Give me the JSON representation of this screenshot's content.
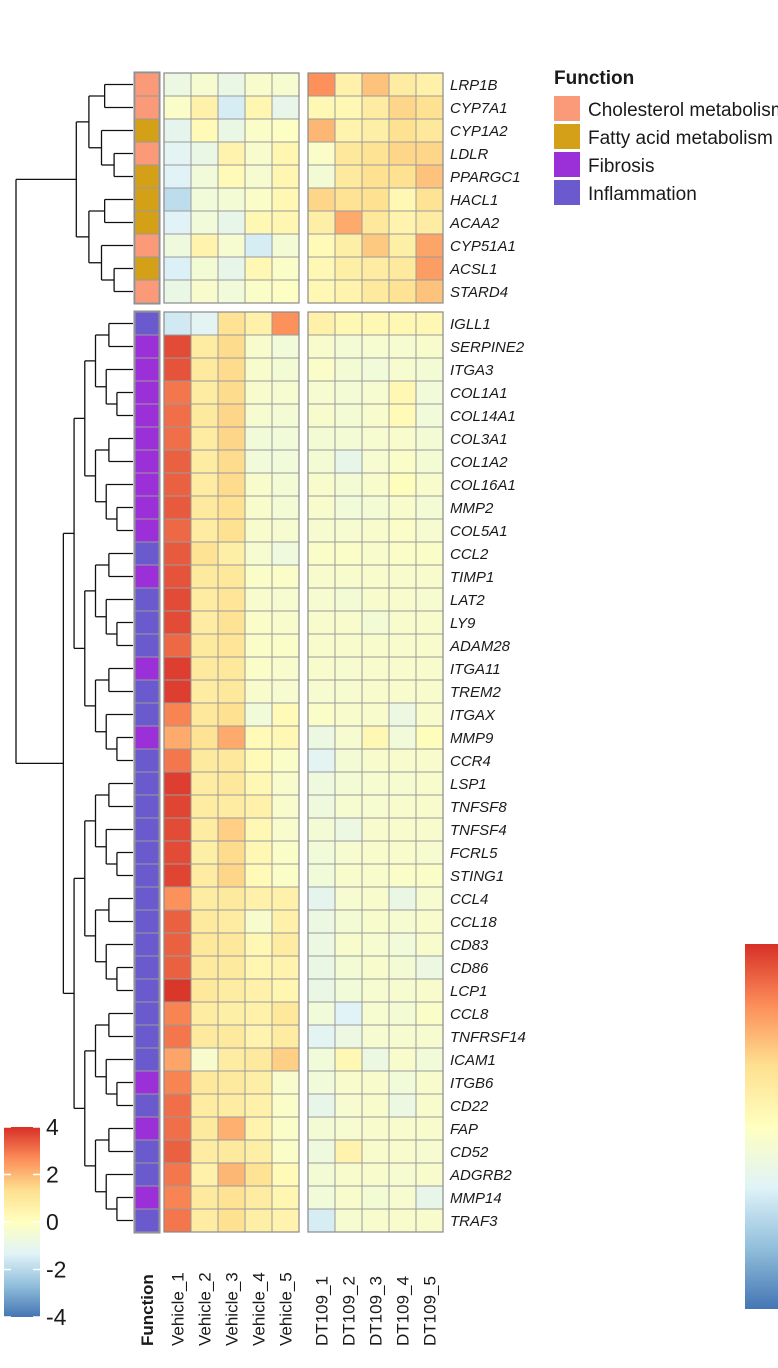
{
  "chart_data": {
    "type": "heatmap",
    "columns": [
      "Vehicle_1",
      "Vehicle_2",
      "Vehicle_3",
      "Vehicle_4",
      "Vehicle_5",
      "DT109_1",
      "DT109_2",
      "DT109_3",
      "DT109_4",
      "DT109_5"
    ],
    "function_column_label": "Function",
    "groups": [
      {
        "rows": [
          {
            "gene": "LRP1B",
            "function": "Cholesterol metabolism",
            "values": [
              -0.8,
              -0.4,
              -0.9,
              -0.3,
              -0.4,
              2.6,
              0.6,
              1.8,
              0.8,
              0.6
            ]
          },
          {
            "gene": "CYP7A1",
            "function": "Cholesterol metabolism",
            "values": [
              -0.2,
              0.6,
              -1.5,
              0.4,
              -1.0,
              0.3,
              0.3,
              0.8,
              1.5,
              1.3
            ]
          },
          {
            "gene": "CYP1A2",
            "function": "Fatty acid metabolism",
            "values": [
              -1.1,
              0.2,
              -0.9,
              -0.2,
              -0.1,
              2.0,
              0.5,
              0.7,
              1.3,
              1.0
            ]
          },
          {
            "gene": "LDLR",
            "function": "Cholesterol metabolism",
            "values": [
              -1.2,
              -0.9,
              0.5,
              -0.3,
              0.4,
              -0.2,
              1.0,
              1.2,
              1.5,
              1.5
            ]
          },
          {
            "gene": "PPARGC1",
            "function": "Fatty acid metabolism",
            "values": [
              -1.3,
              -0.6,
              0.2,
              -0.4,
              0.4,
              -0.5,
              0.9,
              1.3,
              1.3,
              1.8
            ]
          },
          {
            "gene": "HACL1",
            "function": "Fatty acid metabolism",
            "values": [
              -1.9,
              -0.6,
              -0.5,
              -0.2,
              0.3,
              1.5,
              1.2,
              1.3,
              0.3,
              1.2
            ]
          },
          {
            "gene": "ACAA2",
            "function": "Fatty acid metabolism",
            "values": [
              -1.3,
              -0.6,
              -1.0,
              0.3,
              0.4,
              0.7,
              2.2,
              1.0,
              0.5,
              0.8
            ]
          },
          {
            "gene": "CYP51A1",
            "function": "Cholesterol metabolism",
            "values": [
              -0.7,
              0.5,
              -0.4,
              -1.5,
              -0.5,
              0.2,
              0.7,
              1.7,
              0.7,
              2.3
            ]
          },
          {
            "gene": "ACSL1",
            "function": "Fatty acid metabolism",
            "values": [
              -1.4,
              -0.5,
              -1.0,
              0.3,
              -0.2,
              0.3,
              0.7,
              0.8,
              0.9,
              2.4
            ]
          },
          {
            "gene": "STARD4",
            "function": "Cholesterol metabolism",
            "values": [
              -0.9,
              -0.3,
              -0.6,
              -0.2,
              -0.1,
              0.3,
              0.5,
              0.9,
              1.2,
              1.8
            ]
          }
        ]
      },
      {
        "rows": [
          {
            "gene": "IGLL1",
            "function": "Inflammation",
            "values": [
              -1.6,
              -1.2,
              1.2,
              0.6,
              2.6,
              0.6,
              0.3,
              0.3,
              0.3,
              0.3
            ]
          },
          {
            "gene": "SERPINE2",
            "function": "Fibrosis",
            "values": [
              3.6,
              0.8,
              1.4,
              -0.3,
              -0.6,
              -0.3,
              -0.5,
              -0.4,
              -0.4,
              -0.3
            ]
          },
          {
            "gene": "ITGA3",
            "function": "Fibrosis",
            "values": [
              3.5,
              0.9,
              1.4,
              -0.3,
              -0.5,
              -0.2,
              -0.5,
              -0.6,
              -0.4,
              -0.5
            ]
          },
          {
            "gene": "COL1A1",
            "function": "Fibrosis",
            "values": [
              3.0,
              0.8,
              1.4,
              -0.3,
              -0.4,
              -0.4,
              -0.5,
              -0.4,
              0.3,
              -0.6
            ]
          },
          {
            "gene": "COL14A1",
            "function": "Fibrosis",
            "values": [
              3.1,
              0.9,
              1.5,
              -0.4,
              -0.5,
              -0.3,
              -0.5,
              -0.3,
              0.2,
              -0.6
            ]
          },
          {
            "gene": "COL3A1",
            "function": "Fibrosis",
            "values": [
              3.1,
              0.8,
              1.5,
              -0.6,
              -0.6,
              -0.5,
              -0.5,
              -0.4,
              -0.3,
              -0.5
            ]
          },
          {
            "gene": "COL1A2",
            "function": "Fibrosis",
            "values": [
              3.3,
              0.8,
              1.4,
              -0.6,
              -0.6,
              -0.5,
              -1.0,
              -0.4,
              -0.2,
              -0.5
            ]
          },
          {
            "gene": "COL16A1",
            "function": "Fibrosis",
            "values": [
              3.3,
              0.8,
              1.4,
              -0.3,
              -0.5,
              -0.3,
              -0.5,
              -0.3,
              0.1,
              -0.3
            ]
          },
          {
            "gene": "MMP2",
            "function": "Fibrosis",
            "values": [
              3.4,
              0.9,
              1.3,
              -0.3,
              -0.5,
              -0.3,
              -0.6,
              -0.5,
              -0.3,
              -0.5
            ]
          },
          {
            "gene": "COL5A1",
            "function": "Fibrosis",
            "values": [
              3.2,
              0.8,
              1.3,
              -0.3,
              -0.4,
              -0.4,
              -0.4,
              -0.3,
              -0.2,
              -0.4
            ]
          },
          {
            "gene": "CCL2",
            "function": "Inflammation",
            "values": [
              3.4,
              1.2,
              0.7,
              -0.4,
              -0.7,
              -0.2,
              -0.2,
              -0.3,
              -0.2,
              -0.2
            ]
          },
          {
            "gene": "TIMP1",
            "function": "Fibrosis",
            "values": [
              3.5,
              0.9,
              1.0,
              -0.2,
              -0.2,
              -0.3,
              -0.3,
              -0.3,
              -0.3,
              -0.3
            ]
          },
          {
            "gene": "LAT2",
            "function": "Inflammation",
            "values": [
              3.6,
              0.8,
              1.1,
              -0.3,
              -0.4,
              -0.4,
              -0.5,
              -0.3,
              -0.3,
              -0.4
            ]
          },
          {
            "gene": "LY9",
            "function": "Inflammation",
            "values": [
              3.6,
              0.8,
              1.2,
              -0.2,
              -0.3,
              -0.3,
              -0.3,
              -0.5,
              -0.3,
              -0.3
            ]
          },
          {
            "gene": "ADAM28",
            "function": "Inflammation",
            "values": [
              3.2,
              0.9,
              1.1,
              -0.2,
              -0.2,
              -0.3,
              -0.3,
              -0.3,
              -0.3,
              -0.3
            ]
          },
          {
            "gene": "ITGA11",
            "function": "Fibrosis",
            "values": [
              3.8,
              0.9,
              1.0,
              -0.2,
              -0.3,
              -0.3,
              -0.4,
              -0.3,
              -0.3,
              -0.3
            ]
          },
          {
            "gene": "TREM2",
            "function": "Inflammation",
            "values": [
              3.8,
              0.8,
              1.0,
              -0.3,
              -0.4,
              -0.4,
              -0.4,
              -0.3,
              -0.3,
              -0.3
            ]
          },
          {
            "gene": "ITGAX",
            "function": "Inflammation",
            "values": [
              2.8,
              1.0,
              1.3,
              -0.6,
              0.2,
              -0.2,
              -0.3,
              -0.3,
              -0.8,
              -0.3
            ]
          },
          {
            "gene": "MMP9",
            "function": "Fibrosis",
            "values": [
              2.2,
              1.2,
              2.2,
              0.2,
              0.3,
              -0.8,
              -0.4,
              0.3,
              -0.6,
              0.1
            ]
          },
          {
            "gene": "CCR4",
            "function": "Inflammation",
            "values": [
              3.0,
              0.9,
              1.0,
              0.2,
              -0.2,
              -1.2,
              -0.5,
              -0.3,
              -0.3,
              -0.3
            ]
          },
          {
            "gene": "LSP1",
            "function": "Inflammation",
            "values": [
              3.8,
              0.8,
              1.0,
              0.3,
              -0.3,
              -0.7,
              -0.5,
              -0.4,
              -0.4,
              -0.3
            ]
          },
          {
            "gene": "TNFSF8",
            "function": "Inflammation",
            "values": [
              3.7,
              0.8,
              0.8,
              0.6,
              -0.3,
              -0.7,
              -0.4,
              -0.4,
              -0.3,
              -0.3
            ]
          },
          {
            "gene": "TNFSF4",
            "function": "Inflammation",
            "values": [
              3.6,
              0.8,
              1.6,
              0.3,
              -0.3,
              -0.5,
              -0.8,
              -0.3,
              -0.3,
              -0.3
            ]
          },
          {
            "gene": "FCRL5",
            "function": "Inflammation",
            "values": [
              3.6,
              0.7,
              1.4,
              0.3,
              -0.2,
              -0.6,
              -0.4,
              -0.3,
              -0.3,
              -0.4
            ]
          },
          {
            "gene": "STING1",
            "function": "Inflammation",
            "values": [
              3.7,
              0.8,
              1.5,
              0.2,
              -0.2,
              -0.6,
              -0.3,
              -0.3,
              -0.2,
              -0.2
            ]
          },
          {
            "gene": "CCL4",
            "function": "Inflammation",
            "values": [
              2.6,
              0.8,
              0.9,
              0.6,
              0.6,
              -1.1,
              -0.4,
              -0.3,
              -0.9,
              -0.4
            ]
          },
          {
            "gene": "CCL18",
            "function": "Inflammation",
            "values": [
              3.3,
              0.9,
              0.8,
              -0.3,
              0.6,
              -0.8,
              -0.5,
              -0.3,
              -0.4,
              -0.3
            ]
          },
          {
            "gene": "CD83",
            "function": "Inflammation",
            "values": [
              3.3,
              1.0,
              1.0,
              0.3,
              0.8,
              -0.8,
              -0.3,
              -0.4,
              -0.6,
              -0.3
            ]
          },
          {
            "gene": "CD86",
            "function": "Inflammation",
            "values": [
              3.3,
              0.9,
              0.9,
              0.4,
              0.5,
              -0.9,
              -0.5,
              -0.3,
              -0.5,
              -0.8
            ]
          },
          {
            "gene": "LCP1",
            "function": "Inflammation",
            "values": [
              3.9,
              1.0,
              0.8,
              0.6,
              0.4,
              -0.9,
              -0.6,
              -0.4,
              -0.4,
              -0.3
            ]
          },
          {
            "gene": "CCL8",
            "function": "Inflammation",
            "values": [
              2.8,
              0.8,
              0.7,
              0.6,
              1.0,
              -0.6,
              -1.3,
              -0.4,
              -0.5,
              -0.2
            ]
          },
          {
            "gene": "TNFRSF14",
            "function": "Inflammation",
            "values": [
              3.0,
              0.9,
              0.9,
              0.5,
              0.8,
              -1.2,
              -0.8,
              -0.4,
              -0.4,
              -0.4
            ]
          },
          {
            "gene": "ICAM1",
            "function": "Inflammation",
            "values": [
              2.3,
              -0.3,
              0.8,
              0.9,
              1.6,
              -0.6,
              0.3,
              -0.8,
              -0.3,
              -0.6
            ]
          },
          {
            "gene": "ITGB6",
            "function": "Fibrosis",
            "values": [
              2.8,
              1.0,
              0.9,
              0.7,
              -0.3,
              -0.6,
              -0.3,
              -0.3,
              -0.6,
              -0.3
            ]
          },
          {
            "gene": "CD22",
            "function": "Inflammation",
            "values": [
              3.1,
              0.8,
              0.8,
              0.6,
              -0.2,
              -1.0,
              -0.4,
              -0.3,
              -0.8,
              -0.3
            ]
          },
          {
            "gene": "FAP",
            "function": "Fibrosis",
            "values": [
              3.1,
              0.9,
              2.1,
              0.5,
              -0.2,
              -0.5,
              -0.4,
              -0.3,
              -0.3,
              -0.3
            ]
          },
          {
            "gene": "CD52",
            "function": "Inflammation",
            "values": [
              3.3,
              0.8,
              0.9,
              0.7,
              -0.2,
              -0.7,
              0.5,
              -0.3,
              -0.3,
              -0.4
            ]
          },
          {
            "gene": "ADGRB2",
            "function": "Inflammation",
            "values": [
              3.0,
              0.6,
              2.0,
              1.2,
              0.2,
              -0.5,
              -0.3,
              -0.3,
              -0.4,
              -0.3
            ]
          },
          {
            "gene": "MMP14",
            "function": "Fibrosis",
            "values": [
              2.8,
              0.9,
              1.2,
              0.8,
              0.4,
              -0.6,
              -0.3,
              -0.5,
              -0.4,
              -1.0
            ]
          },
          {
            "gene": "TRAF3",
            "function": "Inflammation",
            "values": [
              3.0,
              0.8,
              1.3,
              0.7,
              0.5,
              -1.5,
              -0.4,
              -0.3,
              -0.3,
              -0.3
            ]
          }
        ]
      }
    ],
    "legend": {
      "title": "Function",
      "entries": [
        {
          "label": "Cholesterol metabolism",
          "color": "#FB9A78"
        },
        {
          "label": "Fatty acid metabolism",
          "color": "#D4A017"
        },
        {
          "label": "Fibrosis",
          "color": "#9B30D9"
        },
        {
          "label": "Inflammation",
          "color": "#6A5ACD"
        }
      ]
    },
    "color_scale": {
      "min": -4,
      "max": 4,
      "ticks": [
        "4",
        "2",
        "0",
        "-2",
        "-4"
      ],
      "colors": [
        "#4575B4",
        "#91BFDB",
        "#E0F3F8",
        "#FFFFBF",
        "#FEE090",
        "#FC8D59",
        "#D73027"
      ]
    }
  }
}
